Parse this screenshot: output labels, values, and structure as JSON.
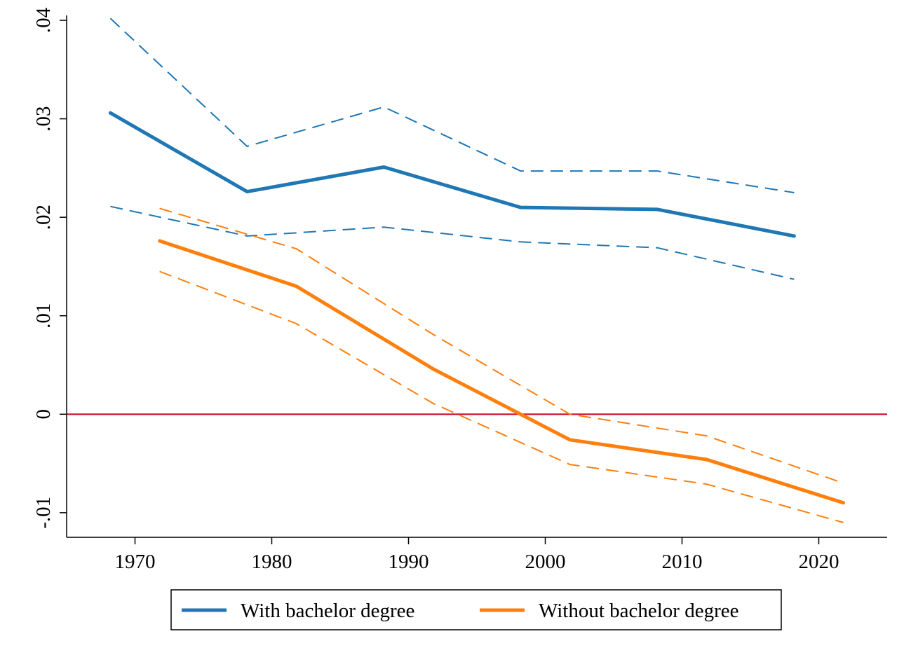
{
  "chart_data": {
    "type": "line",
    "title": "",
    "xlabel": "",
    "ylabel": "",
    "xlim": [
      1965,
      2025
    ],
    "ylim": [
      -0.0125,
      0.0405
    ],
    "x_ticks": [
      1970,
      1980,
      1990,
      2000,
      2010,
      2020
    ],
    "x_tick_labels": [
      "1970",
      "1980",
      "1990",
      "2000",
      "2010",
      "2020"
    ],
    "y_ticks": [
      -0.01,
      0,
      0.01,
      0.02,
      0.03,
      0.04
    ],
    "y_tick_labels": [
      "-.01",
      "0",
      ".01",
      ".02",
      ".03",
      ".04"
    ],
    "grid": false,
    "legend_position": "bottom",
    "reference_line": {
      "y": 0,
      "color": "#c8102e"
    },
    "series": [
      {
        "name": "With bachelor degree",
        "color": "#1f77b4",
        "x": [
          1968.2,
          1978.2,
          1988.2,
          1998.2,
          2008.2,
          2018.2
        ],
        "values": [
          0.0306,
          0.0226,
          0.0251,
          0.021,
          0.0208,
          0.0181
        ],
        "ci_upper": [
          0.0402,
          0.0272,
          0.0312,
          0.0247,
          0.0247,
          0.0225
        ],
        "ci_lower": [
          0.0211,
          0.0181,
          0.019,
          0.0175,
          0.0169,
          0.0137
        ]
      },
      {
        "name": "Without bachelor degree",
        "color": "#ff7f0e",
        "x": [
          1971.8,
          1981.8,
          1991.8,
          2001.8,
          2011.8,
          2021.8
        ],
        "values": [
          0.0176,
          0.013,
          0.0046,
          -0.0026,
          -0.0046,
          -0.009
        ],
        "ci_upper": [
          0.0209,
          0.0168,
          0.0081,
          0.0,
          -0.0022,
          -0.007
        ],
        "ci_lower": [
          0.0145,
          0.0092,
          0.0011,
          -0.0051,
          -0.0071,
          -0.011
        ]
      }
    ]
  }
}
